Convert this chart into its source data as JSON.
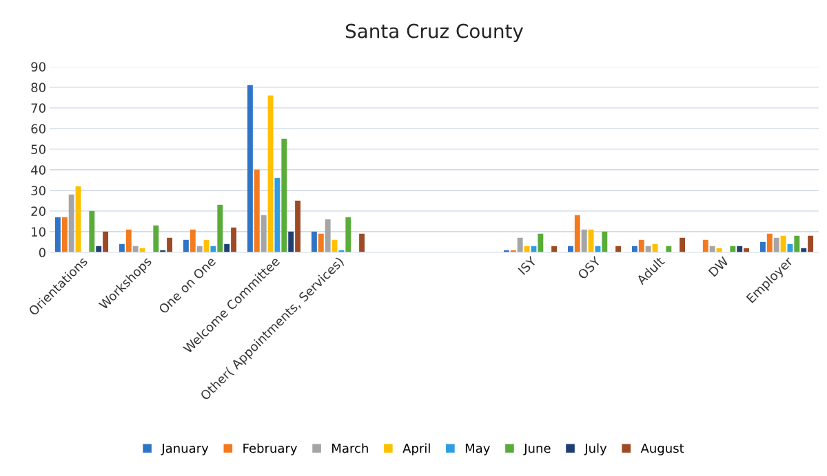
{
  "chart_data": {
    "type": "bar",
    "title": "Santa Cruz County",
    "categories": [
      "Orientations",
      "Workshops",
      "One on One",
      "Welcome Committee",
      "Other( Appointments, Services)",
      null,
      null,
      "ISY",
      "OSY",
      "Adult",
      "DW",
      "Employer"
    ],
    "series": [
      {
        "name": "January",
        "color": "#2e75c8",
        "values": [
          17,
          4,
          6,
          81,
          10,
          null,
          null,
          1,
          3,
          3,
          0,
          5
        ]
      },
      {
        "name": "February",
        "color": "#f47a20",
        "values": [
          17,
          11,
          11,
          40,
          9,
          null,
          null,
          1,
          18,
          6,
          6,
          9
        ]
      },
      {
        "name": "March",
        "color": "#a5a5a5",
        "values": [
          28,
          3,
          3,
          18,
          16,
          null,
          null,
          7,
          11,
          3,
          3,
          7
        ]
      },
      {
        "name": "April",
        "color": "#ffc000",
        "values": [
          32,
          2,
          6,
          76,
          6,
          null,
          null,
          3,
          11,
          4,
          2,
          8
        ]
      },
      {
        "name": "May",
        "color": "#2f9ee0",
        "values": [
          0,
          0,
          3,
          36,
          1,
          null,
          null,
          3,
          3,
          0,
          0,
          4
        ]
      },
      {
        "name": "June",
        "color": "#5aac3a",
        "values": [
          20,
          13,
          23,
          55,
          17,
          null,
          null,
          9,
          10,
          3,
          3,
          8
        ]
      },
      {
        "name": "July",
        "color": "#1f3f73",
        "values": [
          3,
          1,
          4,
          10,
          0,
          null,
          null,
          0,
          0,
          0,
          3,
          2
        ]
      },
      {
        "name": "August",
        "color": "#9e4a24",
        "values": [
          10,
          7,
          12,
          25,
          9,
          null,
          null,
          3,
          3,
          7,
          2,
          8
        ]
      }
    ],
    "ylim": [
      0,
      90
    ],
    "yticks": [
      0,
      10,
      20,
      30,
      40,
      50,
      60,
      70,
      80,
      90
    ],
    "grid": "y",
    "legend": "bottom"
  }
}
